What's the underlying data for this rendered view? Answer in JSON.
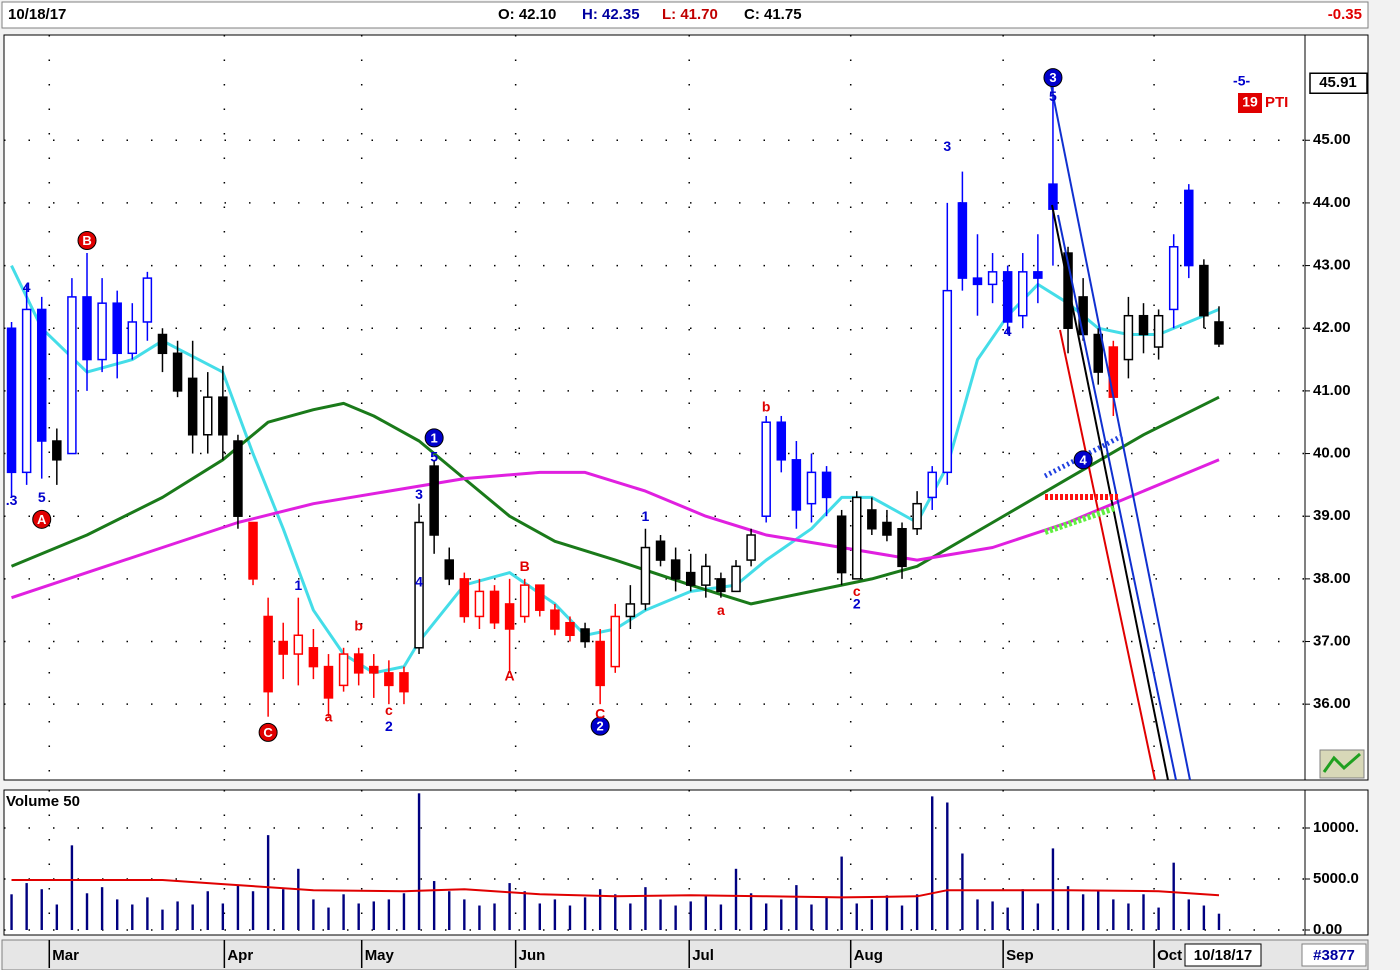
{
  "header": {
    "date": "10/18/17",
    "open": "O: 42.10",
    "high": "H: 42.35",
    "low": "L: 41.70",
    "close": "C: 41.75",
    "change": "-0.35"
  },
  "chart_data": [
    {
      "type": "candlestick",
      "xlim": [
        -0.5,
        85.7
      ],
      "ylim": [
        34.79,
        46.68
      ],
      "grid": true,
      "yticks": [
        {
          "value": 36,
          "label": "36.00"
        },
        {
          "value": 37,
          "label": "37.00"
        },
        {
          "value": 38,
          "label": "38.00"
        },
        {
          "value": 39,
          "label": "39.00"
        },
        {
          "value": 40,
          "label": "40.00"
        },
        {
          "value": 41,
          "label": "41.00"
        },
        {
          "value": 42,
          "label": "42.00"
        },
        {
          "value": 43,
          "label": "43.00"
        },
        {
          "value": 44,
          "label": "44.00"
        },
        {
          "value": 45,
          "label": "45.00"
        }
      ],
      "xticks": [
        {
          "value": 2.5,
          "label": "Mar"
        },
        {
          "value": 14.1,
          "label": "Apr"
        },
        {
          "value": 23.2,
          "label": "May"
        },
        {
          "value": 33.4,
          "label": "Jun"
        },
        {
          "value": 44.9,
          "label": "Jul"
        },
        {
          "value": 55.6,
          "label": "Aug"
        },
        {
          "value": 65.7,
          "label": "Sep"
        },
        {
          "value": 75.7,
          "label": "Oct"
        }
      ],
      "open": [
        42.0,
        39.7,
        42.3,
        40.2,
        40.0,
        42.5,
        41.5,
        42.4,
        41.6,
        42.1,
        41.9,
        41.6,
        41.2,
        40.3,
        40.9,
        40.2,
        38.9,
        37.4,
        37.0,
        36.8,
        36.9,
        36.6,
        36.3,
        36.8,
        36.6,
        36.5,
        36.5,
        36.9,
        39.8,
        38.3,
        38.0,
        37.4,
        37.8,
        37.6,
        37.4,
        37.9,
        37.5,
        37.3,
        37.2,
        37.0,
        36.6,
        37.4,
        37.6,
        38.6,
        38.3,
        38.1,
        37.9,
        38.0,
        37.8,
        38.3,
        39.0,
        40.5,
        39.9,
        39.2,
        39.7,
        39.0,
        38.0,
        39.1,
        38.9,
        38.8,
        38.8,
        39.3,
        39.7,
        44.0,
        42.8,
        42.7,
        42.9,
        42.2,
        42.9,
        44.3,
        43.2,
        42.5,
        41.9,
        41.7,
        41.5,
        42.2,
        41.7,
        42.3,
        44.2,
        43.0,
        42.1
      ],
      "high": [
        42.1,
        42.7,
        42.5,
        40.4,
        42.8,
        43.2,
        42.8,
        42.6,
        42.4,
        42.9,
        42.0,
        41.8,
        41.8,
        41.3,
        41.4,
        40.3,
        38.9,
        37.7,
        37.3,
        37.7,
        37.2,
        36.8,
        36.9,
        36.9,
        36.8,
        36.7,
        36.6,
        39.2,
        39.9,
        38.5,
        38.1,
        38.0,
        37.9,
        38.0,
        38.0,
        37.9,
        37.6,
        37.4,
        37.3,
        37.2,
        37.6,
        37.9,
        38.8,
        38.7,
        38.5,
        38.4,
        38.4,
        38.1,
        38.3,
        38.8,
        40.6,
        40.6,
        40.2,
        40.0,
        39.8,
        39.1,
        39.4,
        39.3,
        39.1,
        38.9,
        39.4,
        39.8,
        44.0,
        44.5,
        43.5,
        43.2,
        43.0,
        43.2,
        43.5,
        45.91,
        43.3,
        42.8,
        42.0,
        41.8,
        42.5,
        42.4,
        42.3,
        43.5,
        44.3,
        43.1,
        42.35
      ],
      "low": [
        39.3,
        39.5,
        39.6,
        39.5,
        40.0,
        41.0,
        41.3,
        41.2,
        41.5,
        41.8,
        41.3,
        40.9,
        40.0,
        40.0,
        39.9,
        38.8,
        37.9,
        35.8,
        36.4,
        36.3,
        36.4,
        35.8,
        36.2,
        36.3,
        36.1,
        36.0,
        36.0,
        36.8,
        38.4,
        37.9,
        37.3,
        37.2,
        37.2,
        36.5,
        37.3,
        37.4,
        37.1,
        37.0,
        36.9,
        36.0,
        36.5,
        37.2,
        37.5,
        38.2,
        37.8,
        37.8,
        37.7,
        37.7,
        37.8,
        38.2,
        38.9,
        39.7,
        38.8,
        38.9,
        39.0,
        37.9,
        38.0,
        38.7,
        38.6,
        38.0,
        38.7,
        39.1,
        39.5,
        42.6,
        42.2,
        42.4,
        41.9,
        42.0,
        42.4,
        43.0,
        41.6,
        41.8,
        41.1,
        40.6,
        41.2,
        41.6,
        41.5,
        42.0,
        42.8,
        42.0,
        41.7
      ],
      "close": [
        39.7,
        42.3,
        40.2,
        39.9,
        42.5,
        41.5,
        42.4,
        41.6,
        42.1,
        42.8,
        41.6,
        41.0,
        40.3,
        40.9,
        40.3,
        39.0,
        38.0,
        36.2,
        36.8,
        37.1,
        36.6,
        36.1,
        36.8,
        36.5,
        36.5,
        36.3,
        36.2,
        38.9,
        38.7,
        38.0,
        37.4,
        37.8,
        37.3,
        37.2,
        37.9,
        37.5,
        37.2,
        37.1,
        37.0,
        36.3,
        37.4,
        37.6,
        38.5,
        38.3,
        38.0,
        37.9,
        38.2,
        37.8,
        38.2,
        38.7,
        40.5,
        39.9,
        39.1,
        39.7,
        39.3,
        38.1,
        39.3,
        38.8,
        38.7,
        38.2,
        39.2,
        39.7,
        42.6,
        42.8,
        42.7,
        42.9,
        42.1,
        42.9,
        42.8,
        43.9,
        42.0,
        41.9,
        41.3,
        40.9,
        42.2,
        41.9,
        42.2,
        43.3,
        43.0,
        42.2,
        41.75
      ],
      "colors": [
        "#0000ff",
        "#0000ff",
        "#0000ff",
        "#000000",
        "#0000ff",
        "#0000ff",
        "#0000ff",
        "#0000ff",
        "#0000ff",
        "#0000ff",
        "#000000",
        "#000000",
        "#000000",
        "#000000",
        "#000000",
        "#000000",
        "#ff0000",
        "#ff0000",
        "#ff0000",
        "#ff0000",
        "#ff0000",
        "#ff0000",
        "#ff0000",
        "#ff0000",
        "#ff0000",
        "#ff0000",
        "#ff0000",
        "#000000",
        "#000000",
        "#000000",
        "#ff0000",
        "#ff0000",
        "#ff0000",
        "#ff0000",
        "#ff0000",
        "#ff0000",
        "#ff0000",
        "#ff0000",
        "#000000",
        "#ff0000",
        "#ff0000",
        "#000000",
        "#000000",
        "#000000",
        "#000000",
        "#000000",
        "#000000",
        "#000000",
        "#000000",
        "#000000",
        "#0000ff",
        "#0000ff",
        "#0000ff",
        "#0000ff",
        "#0000ff",
        "#000000",
        "#000000",
        "#000000",
        "#000000",
        "#000000",
        "#000000",
        "#0000ff",
        "#0000ff",
        "#0000ff",
        "#0000ff",
        "#0000ff",
        "#0000ff",
        "#0000ff",
        "#0000ff",
        "#0000ff",
        "#000000",
        "#000000",
        "#000000",
        "#ff0000",
        "#000000",
        "#000000",
        "#000000",
        "#0000ff",
        "#0000ff",
        "#000000",
        "#000000"
      ],
      "series": [
        {
          "color": "#44dde8",
          "x": [
            0,
            2,
            5,
            8,
            10,
            14,
            16,
            18,
            20,
            22,
            24,
            26,
            27,
            30,
            33,
            36,
            38,
            40,
            42,
            45,
            48,
            50,
            53,
            55,
            57,
            60,
            62,
            64,
            66,
            68,
            70,
            72,
            74,
            76,
            78,
            80
          ],
          "values": [
            43.0,
            42.0,
            41.3,
            41.5,
            41.8,
            41.3,
            40.0,
            38.8,
            37.5,
            36.8,
            36.5,
            36.6,
            37.0,
            37.9,
            38.1,
            37.6,
            37.1,
            37.2,
            37.5,
            37.8,
            37.9,
            38.3,
            38.8,
            39.3,
            39.3,
            38.9,
            39.8,
            41.5,
            42.2,
            42.7,
            42.4,
            42.0,
            41.9,
            41.9,
            42.1,
            42.3
          ]
        },
        {
          "color": "#1a7a1a",
          "x": [
            0,
            5,
            10,
            14,
            17,
            20,
            22,
            24,
            27,
            30,
            33,
            36,
            40,
            45,
            49,
            53,
            57,
            60,
            65,
            70,
            75,
            80
          ],
          "values": [
            38.2,
            38.7,
            39.3,
            39.9,
            40.5,
            40.7,
            40.8,
            40.6,
            40.2,
            39.6,
            39.0,
            38.6,
            38.3,
            37.9,
            37.6,
            37.8,
            38.0,
            38.2,
            38.9,
            39.6,
            40.3,
            40.9
          ]
        },
        {
          "color": "#e020e0",
          "x": [
            0,
            5,
            10,
            15,
            20,
            25,
            30,
            35,
            38,
            42,
            46,
            50,
            55,
            60,
            65,
            70,
            75,
            80
          ],
          "values": [
            37.7,
            38.1,
            38.5,
            38.9,
            39.2,
            39.4,
            39.6,
            39.7,
            39.7,
            39.4,
            39.0,
            38.7,
            38.5,
            38.3,
            38.5,
            38.9,
            39.4,
            39.9
          ]
        }
      ],
      "annotations": [
        {
          "text": "A",
          "x": 2,
          "y": 38.95,
          "color": "#e00000",
          "circled": true
        },
        {
          "text": "B",
          "x": 5,
          "y": 43.4,
          "color": "#e00000",
          "circled": true
        },
        {
          "text": "C",
          "x": 17,
          "y": 35.55,
          "color": "#e00000",
          "circled": true
        },
        {
          "text": "1",
          "x": 28,
          "y": 40.25,
          "color": "#0000cc",
          "circled": true
        },
        {
          "text": "2",
          "x": 39,
          "y": 35.65,
          "color": "#0000cc",
          "circled": true
        },
        {
          "text": "3",
          "x": 69,
          "y": 46.0,
          "color": "#0000cc",
          "circled": true
        },
        {
          "text": "4",
          "x": 71,
          "y": 39.9,
          "color": "#0000cc",
          "circled": true
        },
        {
          "text": ".3",
          "x": 0,
          "y": 39.25,
          "color": "#0000cc",
          "circled": false
        },
        {
          "text": "4",
          "x": 1,
          "y": 42.65,
          "color": "#0000cc",
          "circled": false
        },
        {
          "text": "5",
          "x": 2,
          "y": 39.3,
          "color": "#0000cc",
          "circled": false
        },
        {
          "text": "1",
          "x": 19,
          "y": 37.9,
          "color": "#0000cc",
          "circled": false
        },
        {
          "text": "a",
          "x": 21,
          "y": 35.8,
          "color": "#e00000",
          "circled": false
        },
        {
          "text": "b",
          "x": 23,
          "y": 37.25,
          "color": "#e00000",
          "circled": false
        },
        {
          "text": "c",
          "x": 25,
          "y": 35.9,
          "color": "#e00000",
          "circled": false
        },
        {
          "text": "2",
          "x": 25,
          "y": 35.65,
          "color": "#0000cc",
          "circled": false
        },
        {
          "text": "3",
          "x": 27,
          "y": 39.35,
          "color": "#0000cc",
          "circled": false
        },
        {
          "text": "5",
          "x": 28,
          "y": 39.95,
          "color": "#0000cc",
          "circled": false
        },
        {
          "text": "4",
          "x": 27,
          "y": 37.95,
          "color": "#0000cc",
          "circled": false
        },
        {
          "text": "A",
          "x": 33,
          "y": 36.45,
          "color": "#e00000",
          "circled": false
        },
        {
          "text": "B",
          "x": 34,
          "y": 38.2,
          "color": "#e00000",
          "circled": false
        },
        {
          "text": "C",
          "x": 39,
          "y": 35.85,
          "color": "#e00000",
          "circled": false
        },
        {
          "text": "1",
          "x": 42,
          "y": 39.0,
          "color": "#0000cc",
          "circled": false
        },
        {
          "text": "a",
          "x": 47,
          "y": 37.5,
          "color": "#e00000",
          "circled": false
        },
        {
          "text": "b",
          "x": 50,
          "y": 40.75,
          "color": "#e00000",
          "circled": false
        },
        {
          "text": "c",
          "x": 56,
          "y": 37.8,
          "color": "#e00000",
          "circled": false
        },
        {
          "text": "2",
          "x": 56,
          "y": 37.6,
          "color": "#0000cc",
          "circled": false
        },
        {
          "text": "3",
          "x": 62,
          "y": 44.9,
          "color": "#0000cc",
          "circled": false
        },
        {
          "text": "4",
          "x": 66,
          "y": 41.95,
          "color": "#0000cc",
          "circled": false
        },
        {
          "text": "5",
          "x": 69,
          "y": 45.7,
          "color": "#0000cc",
          "circled": false
        },
        {
          "text": "-5-",
          "x": 81.5,
          "y": 45.95,
          "color": "#0000cc",
          "circled": false
        }
      ],
      "last_price": 45.91,
      "pti": {
        "value": 19,
        "label": "PTI"
      }
    },
    {
      "type": "bar",
      "title": "Volume 50",
      "xlim": [
        -0.5,
        85.7
      ],
      "ylim": [
        -490,
        13725
      ],
      "yticks": [
        {
          "value": 10000,
          "label": "10000."
        },
        {
          "value": 5000,
          "label": "5000.0"
        },
        {
          "value": 0,
          "label": "0.00"
        }
      ],
      "color": "#000080",
      "values": [
        3500,
        4600,
        4000,
        2500,
        8300,
        3600,
        4200,
        3000,
        2500,
        3200,
        2000,
        2800,
        2500,
        3800,
        2600,
        4400,
        3800,
        9300,
        4000,
        6000,
        3000,
        2200,
        3500,
        2600,
        2800,
        3000,
        3600,
        13400,
        4800,
        3800,
        3000,
        2400,
        2600,
        4600,
        3800,
        2600,
        3000,
        2400,
        3200,
        4000,
        3500,
        2600,
        4200,
        3000,
        2400,
        2800,
        3300,
        2500,
        6000,
        3600,
        2600,
        3000,
        4400,
        2500,
        3200,
        7200,
        2600,
        3000,
        3400,
        2400,
        3500,
        13100,
        12500,
        7500,
        3000,
        2800,
        2200,
        4000,
        2600,
        8000,
        4300,
        3500,
        3800,
        3000,
        2600,
        3500,
        2200,
        6600,
        3000,
        2400,
        1600
      ],
      "series": [
        {
          "color": "#e00000",
          "x": [
            0,
            10,
            14,
            20,
            26,
            30,
            35,
            40,
            45,
            50,
            55,
            60,
            62,
            65,
            70,
            76,
            80
          ],
          "values": [
            4900,
            4900,
            4500,
            3900,
            3800,
            4000,
            3500,
            3300,
            3400,
            3300,
            3200,
            3300,
            3900,
            3900,
            3900,
            3800,
            3400
          ]
        }
      ]
    }
  ],
  "footer": {
    "date": "10/18/17",
    "id": "#3877"
  }
}
